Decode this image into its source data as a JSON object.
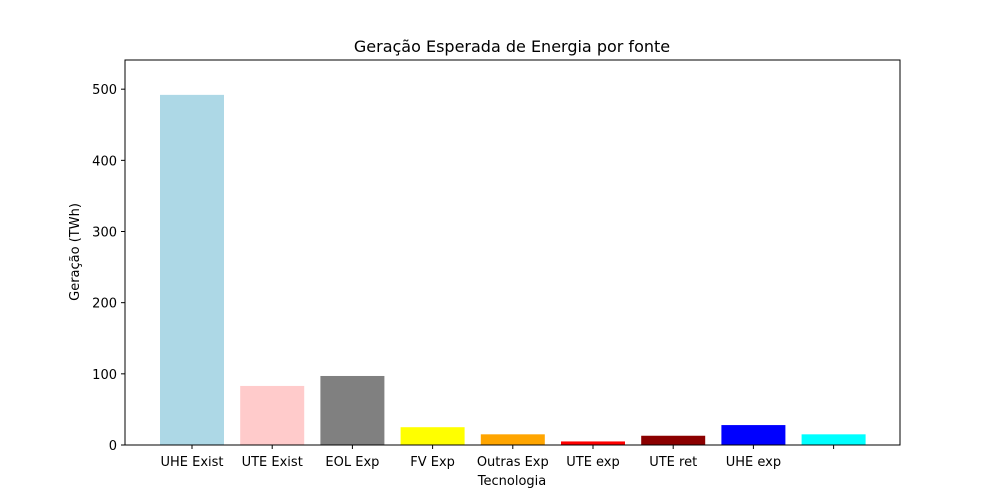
{
  "chart_data": {
    "type": "bar",
    "title": "Geração Esperada de Energia por fonte",
    "xlabel": "Tecnologia",
    "ylabel": "Geração (TWh)",
    "ylim": [
      0,
      541
    ],
    "yticks": [
      0,
      100,
      200,
      300,
      400,
      500
    ],
    "grid": false,
    "categories": [
      "UHE Exist",
      "UTE Exist",
      "EOL Exp",
      "FV Exp",
      "Outras Exp",
      "UTE exp",
      "UTE ret",
      "UHE exp",
      ""
    ],
    "values": [
      492,
      83,
      97,
      25,
      15,
      5,
      13,
      28,
      15
    ],
    "colors": [
      "#add8e6",
      "#ffcbcb",
      "#808080",
      "#ffff00",
      "#ffa500",
      "#ff0000",
      "#8b0000",
      "#0000ff",
      "#00ffff"
    ]
  }
}
